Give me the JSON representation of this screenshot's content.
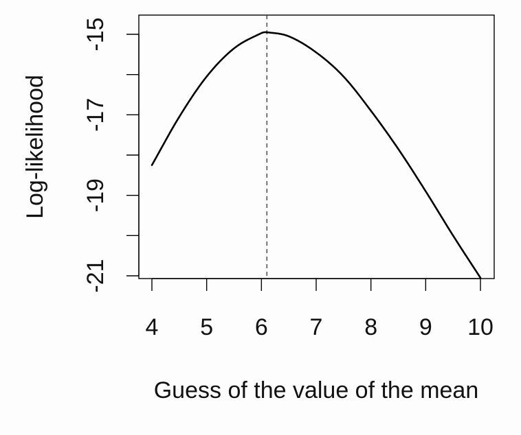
{
  "chart_data": {
    "type": "line",
    "title": "",
    "xlabel": "Guess of the value of the mean",
    "ylabel": "Log-likelihood",
    "xlim": [
      4,
      10
    ],
    "ylim": [
      -21,
      -15
    ],
    "x_ticks": [
      4,
      5,
      6,
      7,
      8,
      9,
      10
    ],
    "x_tick_labels": [
      "4",
      "5",
      "6",
      "7",
      "8",
      "9",
      "10"
    ],
    "y_ticks": [
      -21,
      -20,
      -19,
      -18,
      -17,
      -16,
      -15
    ],
    "y_tick_labels": [
      "-21",
      "",
      "-19",
      "",
      "-17",
      "",
      "-15"
    ],
    "grid": false,
    "series": [
      {
        "x": [
          4.0,
          4.5,
          5.0,
          5.5,
          6.0,
          6.1,
          6.5,
          7.0,
          7.5,
          8.0,
          8.5,
          9.0,
          9.5,
          10.0
        ],
        "y": [
          -18.25,
          -17.05,
          -16.05,
          -15.35,
          -14.97,
          -14.95,
          -15.05,
          -15.45,
          -16.05,
          -16.9,
          -17.85,
          -18.9,
          -20.0,
          -21.05
        ],
        "color": "#000000"
      }
    ],
    "reference_line": {
      "x": 6.1,
      "style": "dashed",
      "color": "#333333"
    }
  }
}
